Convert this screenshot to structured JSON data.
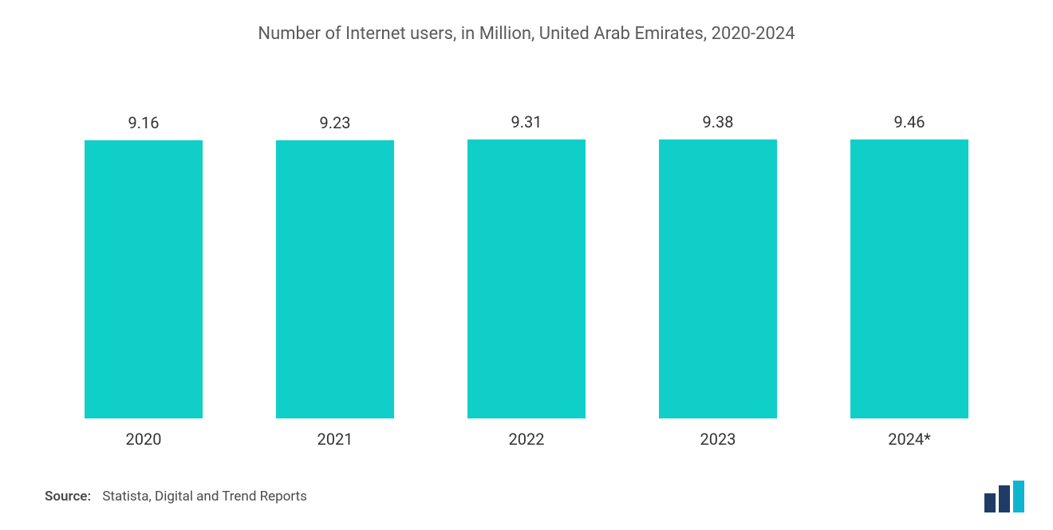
{
  "chart": {
    "type": "bar",
    "title": "Number of Internet users, in Million, United Arab Emirates, 2020-2024",
    "title_fontsize": 22,
    "title_color": "#5a5a5a",
    "categories": [
      "2020",
      "2021",
      "2022",
      "2023",
      "2024*"
    ],
    "values": [
      9.16,
      9.23,
      9.31,
      9.38,
      9.46
    ],
    "value_decimals": 2,
    "bar_color": "#10cfc9",
    "value_label_color": "#333333",
    "value_label_fontsize": 20,
    "category_label_color": "#333333",
    "category_label_fontsize": 20,
    "background_color": "#ffffff",
    "bar_width_ratio": 0.62,
    "y_axis_visible": false,
    "grid_visible": false,
    "data_label_top_height_pct": 78,
    "max_visual_height_pct": 80.5,
    "value_to_height_scale": 0.83
  },
  "footer": {
    "source_label": "Source:",
    "source_text": "Statista, Digital and Trend Reports",
    "fontsize": 17,
    "label_weight": 600,
    "text_color": "#4a4a4a"
  },
  "logo": {
    "bar1_color": "#1f3b66",
    "bar2_color": "#1f3b66",
    "bar3_color": "#0fb5cf",
    "description": "mordor-intelligence-logo"
  }
}
